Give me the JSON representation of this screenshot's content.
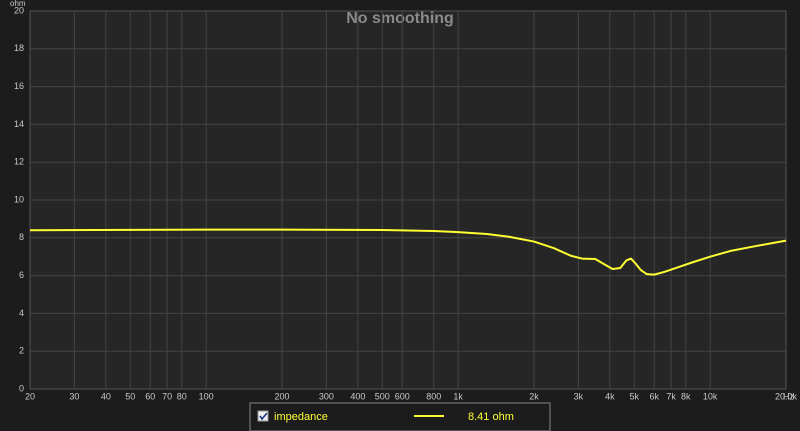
{
  "chart_data": {
    "type": "line",
    "title": "No smoothing",
    "y_unit": "ohm",
    "x_unit": "Hz",
    "x_log": true,
    "grid": true,
    "xlim": [
      20,
      20000
    ],
    "ylim": [
      0,
      20
    ],
    "yticks": [
      0,
      2,
      4,
      6,
      8,
      10,
      12,
      14,
      16,
      18,
      20
    ],
    "xticks": [
      20,
      30,
      40,
      50,
      60,
      70,
      80,
      100,
      200,
      300,
      400,
      500,
      600,
      800,
      {
        "value": 1000,
        "label": "1k"
      },
      {
        "value": 2000,
        "label": "2k"
      },
      {
        "value": 3000,
        "label": "3k"
      },
      {
        "value": 4000,
        "label": "4k"
      },
      {
        "value": 5000,
        "label": "5k"
      },
      {
        "value": 6000,
        "label": "6k"
      },
      {
        "value": 7000,
        "label": "7k"
      },
      {
        "value": 8000,
        "label": "8k"
      },
      {
        "value": 10000,
        "label": "10k"
      },
      {
        "value": 20000,
        "label": "20.0k"
      }
    ],
    "legend_readout": "8.41 ohm",
    "series": [
      {
        "name": "impedance",
        "color": "#ffff33",
        "x": [
          20,
          50,
          100,
          200,
          500,
          800,
          1000,
          1300,
          1600,
          2000,
          2400,
          2800,
          3100,
          3500,
          3800,
          4100,
          4400,
          4650,
          4850,
          5050,
          5300,
          5600,
          6000,
          6600,
          7500,
          8500,
          10000,
          12000,
          15000,
          20000
        ],
        "values": [
          8.4,
          8.42,
          8.43,
          8.43,
          8.41,
          8.36,
          8.3,
          8.2,
          8.05,
          7.8,
          7.45,
          7.05,
          6.9,
          6.88,
          6.6,
          6.35,
          6.4,
          6.8,
          6.9,
          6.65,
          6.3,
          6.08,
          6.05,
          6.2,
          6.45,
          6.7,
          7.0,
          7.3,
          7.55,
          7.85
        ]
      }
    ]
  }
}
